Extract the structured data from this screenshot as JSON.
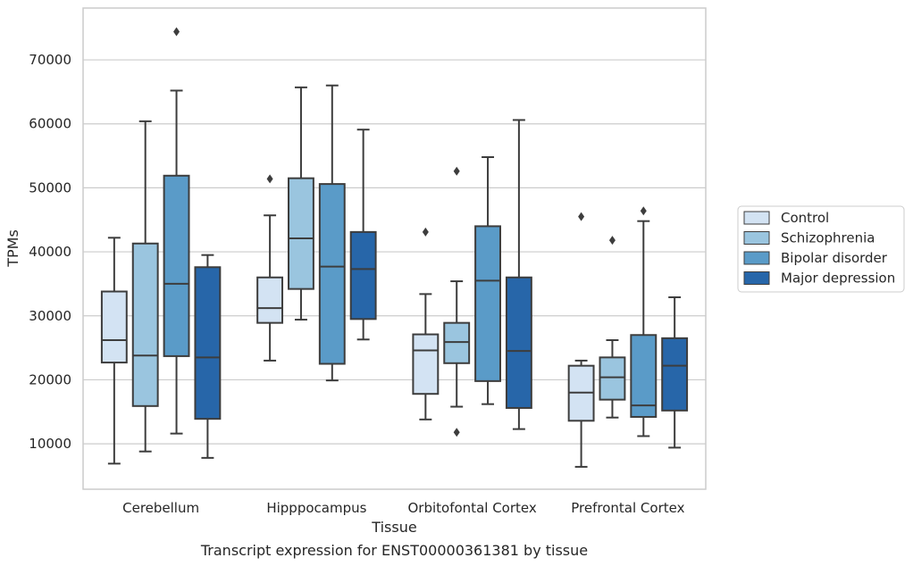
{
  "chart_data": {
    "type": "box",
    "xlabel": "Tissue",
    "ylabel": "TPMs",
    "caption": "Transcript expression for ENST00000361381 by tissue",
    "categories": [
      "Cerebellum",
      "Hipppocampus",
      "Orbitofontal Cortex",
      "Prefrontal Cortex"
    ],
    "ylim": [
      2900,
      78100
    ],
    "yticks": [
      10000,
      20000,
      30000,
      40000,
      50000,
      60000,
      70000
    ],
    "grid": "horizontal",
    "legend_position": "right",
    "series": [
      {
        "name": "Control",
        "color": "#d3e3f3",
        "boxes": [
          {
            "whisker_low": 6900,
            "q1": 22700,
            "median": 26200,
            "q3": 33800,
            "whisker_high": 42200,
            "outliers": []
          },
          {
            "whisker_low": 23000,
            "q1": 28900,
            "median": 31200,
            "q3": 36000,
            "whisker_high": 45700,
            "outliers": [
              51400
            ]
          },
          {
            "whisker_low": 13800,
            "q1": 17800,
            "median": 24600,
            "q3": 27100,
            "whisker_high": 33400,
            "outliers": [
              43100
            ]
          },
          {
            "whisker_low": 6400,
            "q1": 13600,
            "median": 18000,
            "q3": 22200,
            "whisker_high": 23000,
            "outliers": [
              45500
            ]
          }
        ]
      },
      {
        "name": "Schizophrenia",
        "color": "#9ac5df",
        "boxes": [
          {
            "whisker_low": 8800,
            "q1": 15900,
            "median": 23800,
            "q3": 41300,
            "whisker_high": 60400,
            "outliers": []
          },
          {
            "whisker_low": 29400,
            "q1": 34200,
            "median": 42100,
            "q3": 51500,
            "whisker_high": 65700,
            "outliers": []
          },
          {
            "whisker_low": 15800,
            "q1": 22600,
            "median": 25900,
            "q3": 28900,
            "whisker_high": 35400,
            "outliers": [
              11800,
              52600
            ]
          },
          {
            "whisker_low": 14100,
            "q1": 16900,
            "median": 20400,
            "q3": 23500,
            "whisker_high": 26200,
            "outliers": [
              41800
            ]
          }
        ]
      },
      {
        "name": "Bipolar disorder",
        "color": "#5a9bc8",
        "boxes": [
          {
            "whisker_low": 11600,
            "q1": 23700,
            "median": 35000,
            "q3": 51900,
            "whisker_high": 65200,
            "outliers": [
              74400
            ]
          },
          {
            "whisker_low": 19900,
            "q1": 22500,
            "median": 37700,
            "q3": 50600,
            "whisker_high": 66000,
            "outliers": []
          },
          {
            "whisker_low": 16200,
            "q1": 19800,
            "median": 35500,
            "q3": 44000,
            "whisker_high": 54800,
            "outliers": []
          },
          {
            "whisker_low": 11200,
            "q1": 14200,
            "median": 16000,
            "q3": 27000,
            "whisker_high": 44800,
            "outliers": [
              46400
            ]
          }
        ]
      },
      {
        "name": "Major depression",
        "color": "#2766a9",
        "boxes": [
          {
            "whisker_low": 7800,
            "q1": 13900,
            "median": 23500,
            "q3": 37600,
            "whisker_high": 39500,
            "outliers": []
          },
          {
            "whisker_low": 26300,
            "q1": 29500,
            "median": 37300,
            "q3": 43100,
            "whisker_high": 59100,
            "outliers": []
          },
          {
            "whisker_low": 12300,
            "q1": 15600,
            "median": 24500,
            "q3": 36000,
            "whisker_high": 60600,
            "outliers": []
          },
          {
            "whisker_low": 9400,
            "q1": 15200,
            "median": 22200,
            "q3": 26500,
            "whisker_high": 32900,
            "outliers": []
          }
        ]
      }
    ]
  }
}
